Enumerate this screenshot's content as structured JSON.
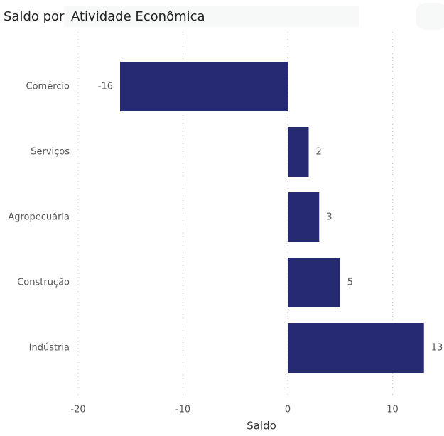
{
  "chart_data": {
    "type": "hbar",
    "title": "Saldo por",
    "subtitle": "Atividade Econômica",
    "categories": [
      "Comércio",
      "Serviços",
      "Agropecuária",
      "Construção",
      "Indústria"
    ],
    "values": [
      -16,
      2,
      3,
      5,
      13
    ],
    "color": "#262a73",
    "xlabel": "Saldo",
    "xlim": [
      -20,
      14
    ],
    "xticks": [
      -20,
      -10,
      0,
      10
    ],
    "grid": true
  }
}
